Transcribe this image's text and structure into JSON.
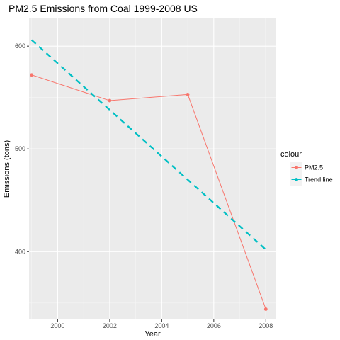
{
  "chart_data": {
    "type": "line",
    "title": "PM2.5 Emissions from Coal 1999-2008 US",
    "xlabel": "Year",
    "ylabel": "Emissions (tons)",
    "xlim": [
      1998.9,
      2008.4
    ],
    "ylim": [
      334,
      627
    ],
    "x_ticks": [
      2000,
      2002,
      2004,
      2006,
      2008
    ],
    "x_tick_labels": [
      "2000",
      "2002",
      "2004",
      "2006",
      "2008"
    ],
    "y_ticks": [
      400,
      500,
      600
    ],
    "y_tick_labels": [
      "400",
      "500",
      "600"
    ],
    "grid": true,
    "legend": {
      "title": "colour",
      "position": "right",
      "entries": [
        "PM2.5",
        "Trend line"
      ]
    },
    "series": [
      {
        "name": "PM2.5",
        "color": "#F8766D",
        "style": "solid",
        "markers": true,
        "x": [
          1999,
          2002,
          2005,
          2008
        ],
        "y": [
          572,
          547,
          553,
          344
        ]
      },
      {
        "name": "Trend line",
        "color": "#00BFC4",
        "style": "dashed",
        "markers": false,
        "x": [
          1999,
          2008
        ],
        "y": [
          606,
          402
        ]
      }
    ]
  }
}
